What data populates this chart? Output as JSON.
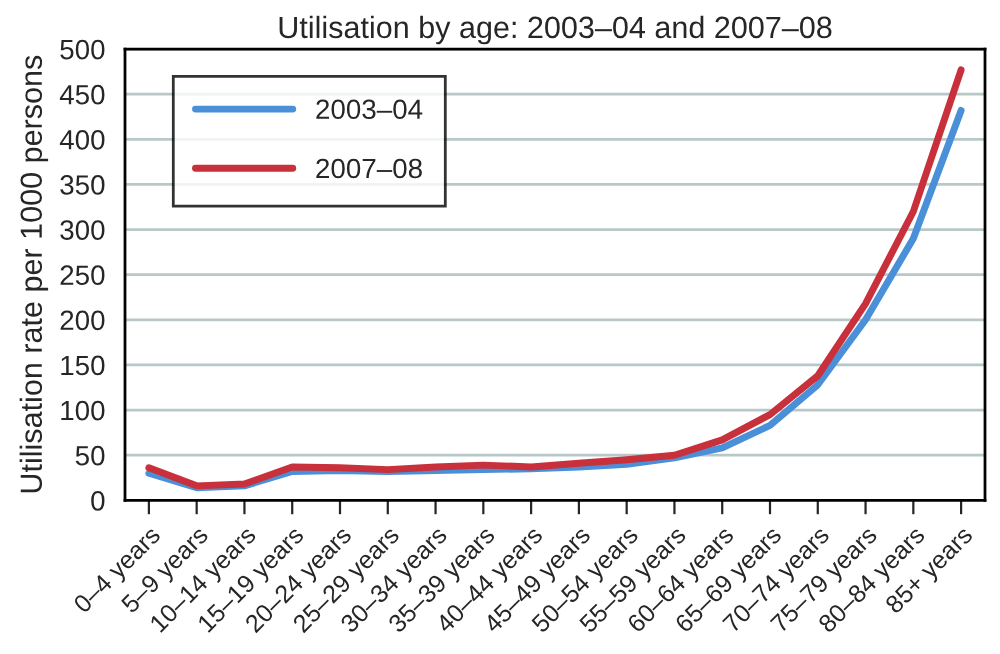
{
  "chart_data": {
    "type": "line",
    "title": "Utilisation by age: 2003–04 and 2007–08",
    "ylabel": "Utilisation rate per 1000 persons",
    "categories": [
      "0–4 years",
      "5–9 years",
      "10–14 years",
      "15–19 years",
      "20–24 years",
      "25–29 years",
      "30–34 years",
      "35–39 years",
      "40–44 years",
      "45–49 years",
      "50–54 years",
      "55–59 years",
      "60–64 years",
      "65–69 years",
      "70–74 years",
      "75–79 years",
      "80–84 years",
      "85+ years"
    ],
    "series": [
      {
        "name": "2003–04",
        "color": "#4a90d9",
        "values": [
          30,
          14,
          16,
          32,
          33,
          32,
          33,
          34,
          35,
          37,
          40,
          47,
          58,
          83,
          128,
          200,
          290,
          432
        ]
      },
      {
        "name": "2007–08",
        "color": "#c8303c",
        "values": [
          36,
          16,
          18,
          37,
          36,
          34,
          37,
          39,
          37,
          41,
          45,
          50,
          67,
          95,
          138,
          218,
          320,
          477
        ]
      }
    ],
    "ylim": [
      0,
      500
    ],
    "yticks": [
      0,
      50,
      100,
      150,
      200,
      250,
      300,
      350,
      400,
      450,
      500
    ],
    "grid": "y",
    "legend": "top left",
    "marker": "none",
    "line_style": "solid"
  }
}
